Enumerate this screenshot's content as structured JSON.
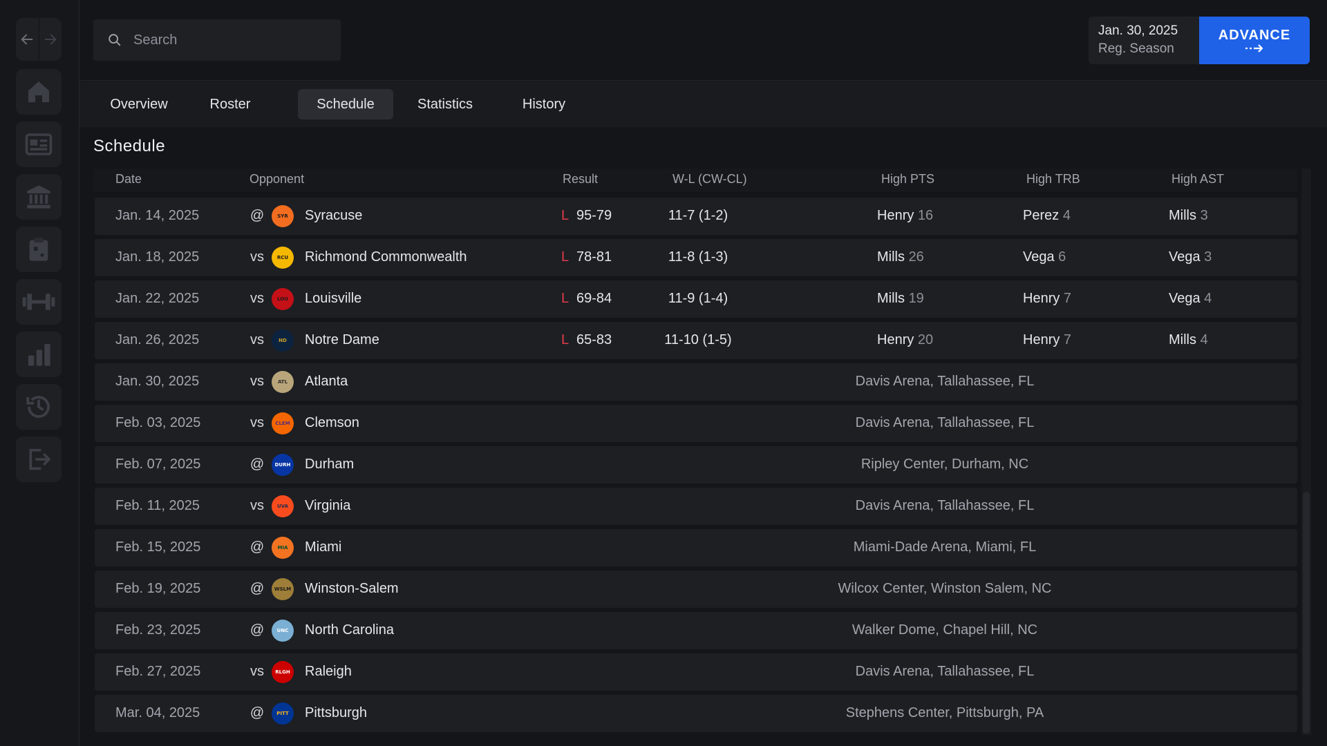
{
  "sidebar": {
    "items": [
      {
        "icon": "home-icon"
      },
      {
        "icon": "news-icon"
      },
      {
        "icon": "institution-icon"
      },
      {
        "icon": "clipboard-icon"
      },
      {
        "icon": "dumbbell-icon"
      },
      {
        "icon": "bar-chart-icon"
      },
      {
        "icon": "history-icon"
      },
      {
        "icon": "exit-icon"
      }
    ]
  },
  "search": {
    "placeholder": "Search"
  },
  "header": {
    "date": "Jan. 30, 2025",
    "phase": "Reg. Season",
    "advance_label": "ADVANCE"
  },
  "tabs": [
    "Overview",
    "Roster",
    "Schedule",
    "Statistics",
    "History"
  ],
  "active_tab": "Schedule",
  "section_title": "Schedule",
  "columns": {
    "date": "Date",
    "opponent": "Opponent",
    "result": "Result",
    "wl": "W-L (CW-CL)",
    "high_pts": "High PTS",
    "high_trb": "High TRB",
    "high_ast": "High AST"
  },
  "colors": {
    "accent": "#1f62e8",
    "loss": "#e23b4a"
  },
  "games": [
    {
      "date": "Jan. 14, 2025",
      "ha": "@",
      "logo": "SYR",
      "logo_bg": "#f26d1f",
      "logo_fg": "#1a1a1a",
      "opponent": "Syracuse",
      "result": "L",
      "score": "95-79",
      "record": "11-7 (1-2)",
      "pts_name": "Henry",
      "pts": "16",
      "trb_name": "Perez",
      "trb": "4",
      "ast_name": "Mills",
      "ast": "3"
    },
    {
      "date": "Jan. 18, 2025",
      "ha": "vs",
      "logo": "RCU",
      "logo_bg": "#f5b800",
      "logo_fg": "#1a1a1a",
      "opponent": "Richmond Commonwealth",
      "result": "L",
      "score": "78-81",
      "record": "11-8 (1-3)",
      "pts_name": "Mills",
      "pts": "26",
      "trb_name": "Vega",
      "trb": "6",
      "ast_name": "Vega",
      "ast": "3"
    },
    {
      "date": "Jan. 22, 2025",
      "ha": "vs",
      "logo": "LOU",
      "logo_bg": "#c41017",
      "logo_fg": "#1a1a1a",
      "opponent": "Louisville",
      "result": "L",
      "score": "69-84",
      "record": "11-9 (1-4)",
      "pts_name": "Mills",
      "pts": "19",
      "trb_name": "Henry",
      "trb": "7",
      "ast_name": "Vega",
      "ast": "4"
    },
    {
      "date": "Jan. 26, 2025",
      "ha": "vs",
      "logo": "ND",
      "logo_bg": "#0c2340",
      "logo_fg": "#c9a227",
      "opponent": "Notre Dame",
      "result": "L",
      "score": "65-83",
      "record": "11-10 (1-5)",
      "pts_name": "Henry",
      "pts": "20",
      "trb_name": "Henry",
      "trb": "7",
      "ast_name": "Mills",
      "ast": "4"
    },
    {
      "date": "Jan. 30, 2025",
      "ha": "vs",
      "logo": "ATL",
      "logo_bg": "#b8a67a",
      "logo_fg": "#2a2a2a",
      "opponent": "Atlanta",
      "venue": "Davis Arena, Tallahassee, FL"
    },
    {
      "date": "Feb. 03, 2025",
      "ha": "vs",
      "logo": "CLEM",
      "logo_bg": "#f56600",
      "logo_fg": "#522d80",
      "opponent": "Clemson",
      "venue": "Davis Arena, Tallahassee, FL"
    },
    {
      "date": "Feb. 07, 2025",
      "ha": "@",
      "logo": "DURH",
      "logo_bg": "#0736a4",
      "logo_fg": "#ffffff",
      "opponent": "Durham",
      "venue": "Ripley Center, Durham, NC"
    },
    {
      "date": "Feb. 11, 2025",
      "ha": "vs",
      "logo": "UVA",
      "logo_bg": "#f84c1e",
      "logo_fg": "#232d4b",
      "opponent": "Virginia",
      "venue": "Davis Arena, Tallahassee, FL"
    },
    {
      "date": "Feb. 15, 2025",
      "ha": "@",
      "logo": "MIA",
      "logo_bg": "#f47321",
      "logo_fg": "#005030",
      "opponent": "Miami",
      "venue": "Miami-Dade Arena, Miami, FL"
    },
    {
      "date": "Feb. 19, 2025",
      "ha": "@",
      "logo": "WSLM",
      "logo_bg": "#9e7e38",
      "logo_fg": "#1a1a1a",
      "opponent": "Winston-Salem",
      "venue": "Wilcox Center, Winston Salem, NC"
    },
    {
      "date": "Feb. 23, 2025",
      "ha": "@",
      "logo": "UNC",
      "logo_bg": "#7bafd4",
      "logo_fg": "#ffffff",
      "opponent": "North Carolina",
      "venue": "Walker Dome, Chapel Hill, NC"
    },
    {
      "date": "Feb. 27, 2025",
      "ha": "vs",
      "logo": "RLGH",
      "logo_bg": "#cc0000",
      "logo_fg": "#ffffff",
      "opponent": "Raleigh",
      "venue": "Davis Arena, Tallahassee, FL"
    },
    {
      "date": "Mar. 04, 2025",
      "ha": "@",
      "logo": "PITT",
      "logo_bg": "#003594",
      "logo_fg": "#ffb81c",
      "opponent": "Pittsburgh",
      "venue": "Stephens Center, Pittsburgh, PA"
    }
  ]
}
